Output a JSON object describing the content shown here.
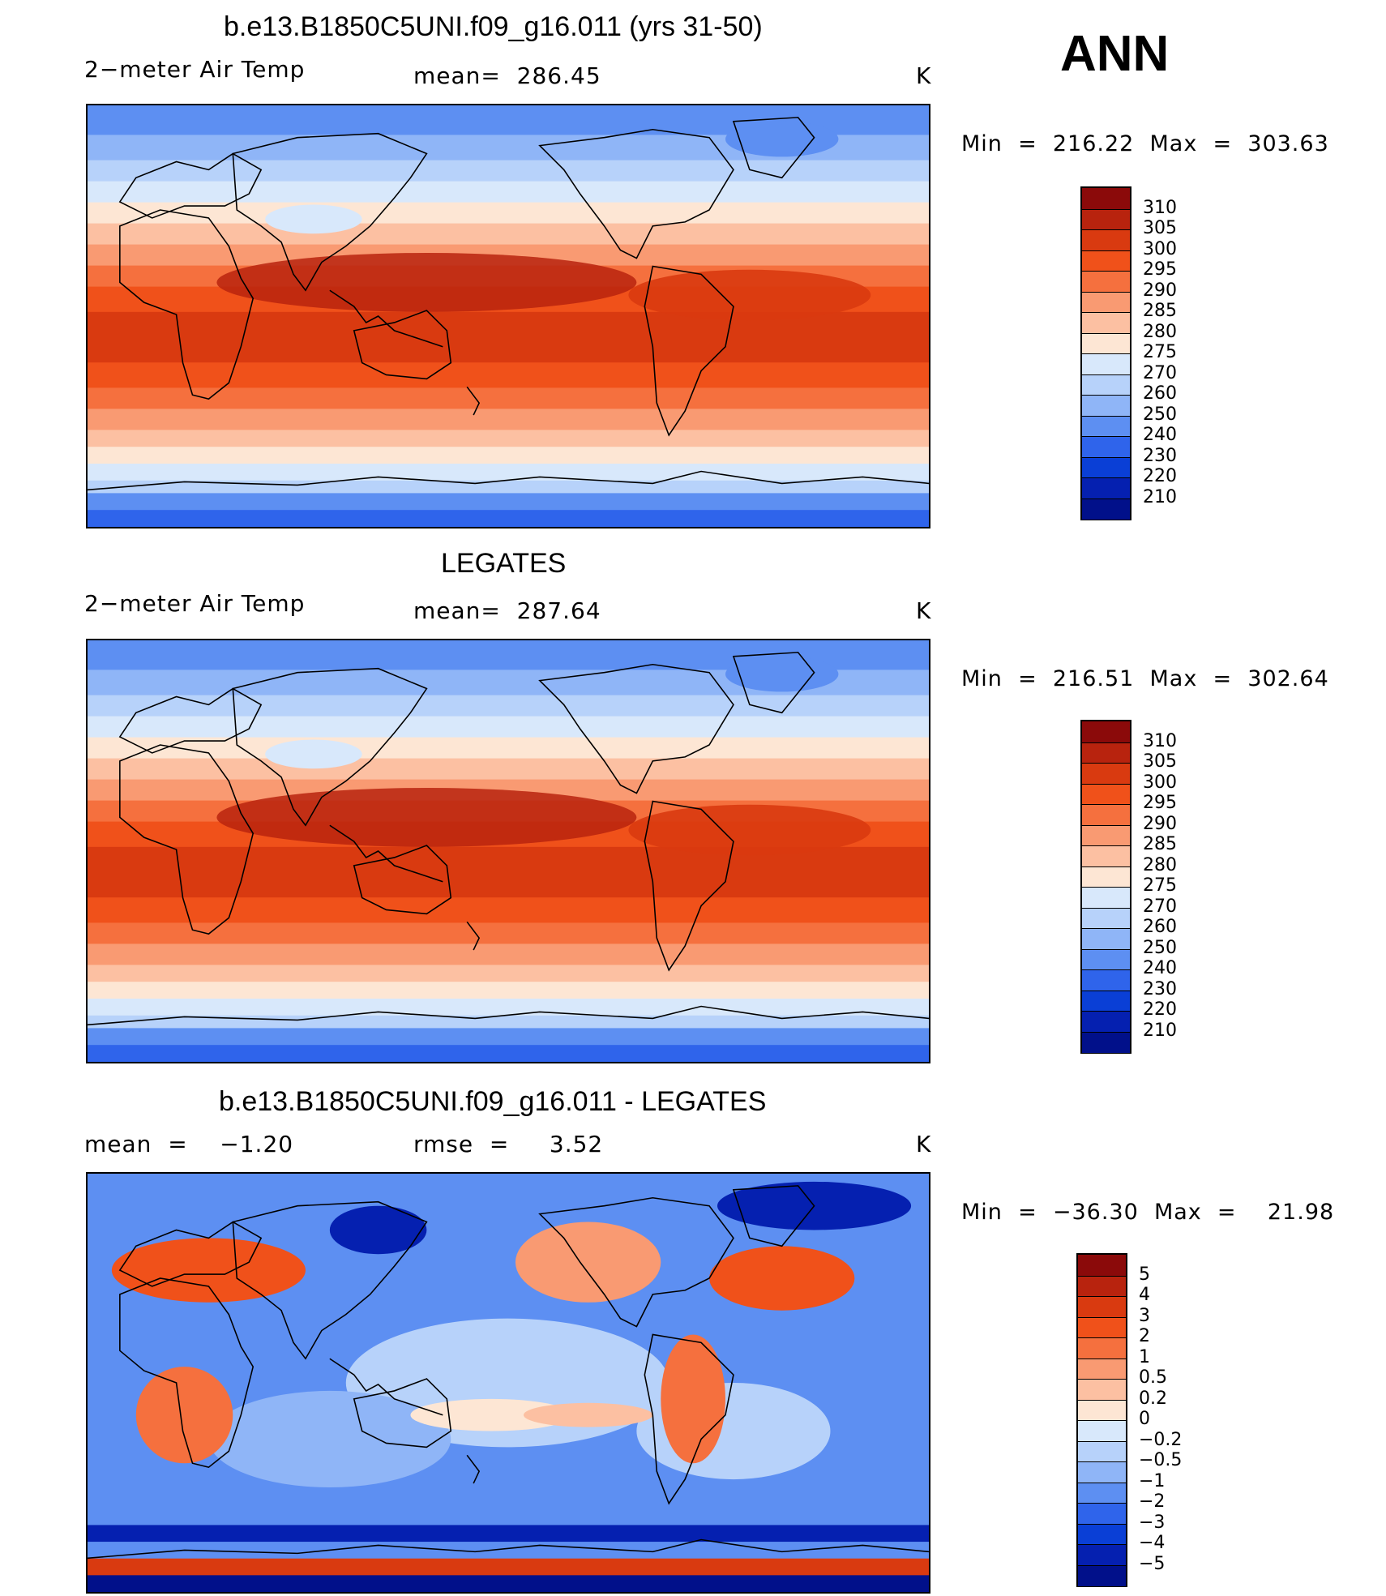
{
  "season": "ANN",
  "panels": [
    {
      "id": "model",
      "title": "b.e13.B1850C5UNI.f09_g16.011 (yrs 31-50)",
      "left_label": "2−meter Air Temp",
      "center_label": "mean=  286.45",
      "units": "K",
      "minmax": "Min  =  216.22  Max  =  303.63",
      "field": "model"
    },
    {
      "id": "obs",
      "title": "LEGATES",
      "left_label": "2−meter Air Temp",
      "center_label": "mean=  287.64",
      "units": "K",
      "minmax": "Min  =  216.51  Max  =  302.64",
      "field": "obs"
    },
    {
      "id": "diff",
      "title": "b.e13.B1850C5UNI.f09_g16.011 - LEGATES",
      "left_label": "mean  =    −1.20",
      "center_label": "rmse  =     3.52",
      "units": "K",
      "minmax": "Min  =  −36.30  Max  =    21.98",
      "field": "diff"
    }
  ],
  "colorbars": {
    "abs": {
      "labels": [
        "310",
        "305",
        "300",
        "295",
        "290",
        "285",
        "280",
        "275",
        "270",
        "260",
        "250",
        "240",
        "230",
        "220",
        "210"
      ],
      "colors": [
        "#8b0a0a",
        "#b8230e",
        "#d93a10",
        "#f0511a",
        "#f5703e",
        "#f99a72",
        "#fcc0a2",
        "#fde6d4",
        "#d8e8fb",
        "#b7d2fa",
        "#8fb5f7",
        "#5d8ff2",
        "#2f64eb",
        "#0a3fd6",
        "#0520b0",
        "#01108a"
      ]
    },
    "diff": {
      "labels": [
        "5",
        "4",
        "3",
        "2",
        "1",
        "0.5",
        "0.2",
        "0",
        "−0.2",
        "−0.5",
        "−1",
        "−2",
        "−3",
        "−4",
        "−5"
      ],
      "colors": [
        "#8b0a0a",
        "#b8230e",
        "#d93a10",
        "#f0511a",
        "#f5703e",
        "#f99a72",
        "#fcc0a2",
        "#fde6d4",
        "#d8e8fb",
        "#b7d2fa",
        "#8fb5f7",
        "#5d8ff2",
        "#2f64eb",
        "#0a3fd6",
        "#0520b0",
        "#01108a"
      ]
    }
  }
}
